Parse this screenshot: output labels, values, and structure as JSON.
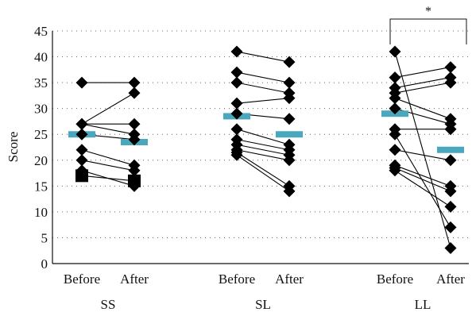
{
  "chart_data": {
    "type": "scatter",
    "ylabel": "Score",
    "ylim": [
      0,
      45
    ],
    "yticks": [
      0,
      5,
      10,
      15,
      20,
      25,
      30,
      35,
      40,
      45
    ],
    "grid": true,
    "subcategory_labels": [
      "Before",
      "After"
    ],
    "groups": [
      {
        "name": "SS",
        "means": {
          "before": 25.0,
          "after": 23.5
        },
        "pairs": [
          {
            "before": 35,
            "after": 35,
            "marker": "diamond"
          },
          {
            "before": 27,
            "after": 33,
            "marker": "diamond"
          },
          {
            "before": 27,
            "after": 27,
            "marker": "diamond"
          },
          {
            "before": 27,
            "after": 25,
            "marker": "diamond"
          },
          {
            "before": 25,
            "after": 24,
            "marker": "diamond"
          },
          {
            "before": 22,
            "after": 19,
            "marker": "diamond"
          },
          {
            "before": 20,
            "after": 18,
            "marker": "diamond"
          },
          {
            "before": 18,
            "after": 15,
            "marker": "diamond"
          },
          {
            "before": 17,
            "after": 16,
            "marker": "square"
          }
        ]
      },
      {
        "name": "SL",
        "means": {
          "before": 28.5,
          "after": 25.0
        },
        "pairs": [
          {
            "before": 41,
            "after": 39,
            "marker": "diamond"
          },
          {
            "before": 37,
            "after": 35,
            "marker": "diamond"
          },
          {
            "before": 35,
            "after": 33,
            "marker": "diamond"
          },
          {
            "before": 31,
            "after": 32,
            "marker": "diamond"
          },
          {
            "before": 29,
            "after": 28,
            "marker": "diamond"
          },
          {
            "before": 26,
            "after": 23,
            "marker": "diamond"
          },
          {
            "before": 24,
            "after": 22,
            "marker": "diamond"
          },
          {
            "before": 23,
            "after": 21,
            "marker": "diamond"
          },
          {
            "before": 22,
            "after": 20,
            "marker": "diamond"
          },
          {
            "before": 21.5,
            "after": 15,
            "marker": "diamond"
          },
          {
            "before": 21,
            "after": 14,
            "marker": "diamond"
          }
        ]
      },
      {
        "name": "LL",
        "means": {
          "before": 29.0,
          "after": 22.0
        },
        "pairs": [
          {
            "before": 41,
            "after": 3,
            "marker": "diamond"
          },
          {
            "before": 36,
            "after": 38,
            "marker": "diamond"
          },
          {
            "before": 34,
            "after": 36,
            "marker": "diamond"
          },
          {
            "before": 33,
            "after": 35,
            "marker": "diamond"
          },
          {
            "before": 32,
            "after": 28,
            "marker": "diamond"
          },
          {
            "before": 30,
            "after": 27,
            "marker": "diamond"
          },
          {
            "before": 26,
            "after": 26,
            "marker": "diamond"
          },
          {
            "before": 22,
            "after": 20,
            "marker": "diamond"
          },
          {
            "before": 19,
            "after": 15,
            "marker": "diamond"
          },
          {
            "before": 18.5,
            "after": 14,
            "marker": "diamond"
          },
          {
            "before": 18,
            "after": 11,
            "marker": "diamond"
          },
          {
            "before": 25,
            "after": 7,
            "marker": "diamond"
          }
        ]
      }
    ],
    "significance": [
      {
        "group": "LL",
        "label": "*"
      }
    ]
  }
}
